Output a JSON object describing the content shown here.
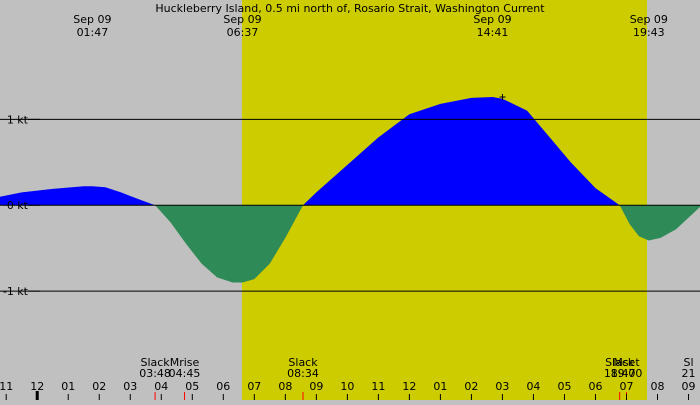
{
  "chart_data": {
    "type": "area",
    "title": "Huckleberry Island, 0.5 mi north of, Rosario Strait, Washington Current",
    "xlabel": "",
    "ylabel": "",
    "x_unit": "hours",
    "xlim": [
      -13.2,
      9.37
    ],
    "ylim": [
      -1.86,
      2.18
    ],
    "grid": false,
    "legend": "none",
    "y_ticks": [
      {
        "value": 1,
        "label": "1 kt"
      },
      {
        "value": 0,
        "label": "0 kt"
      },
      {
        "value": -1,
        "label": "-1 kt"
      }
    ],
    "daylight_start": -5.4,
    "daylight_end": 7.66,
    "colors": {
      "background": "#c0c0c0",
      "daylight": "#cccc00",
      "flood": "#0000ff",
      "ebb": "#2e8b57",
      "lines": "#000000",
      "moon_marker": "#ff0000"
    },
    "top_events": [
      {
        "date": "Sep 09",
        "time": "01:47",
        "hour": -10.22
      },
      {
        "date": "Sep 09",
        "time": "06:37",
        "hour": -5.38
      },
      {
        "date": "Sep 09",
        "time": "14:41",
        "hour": 2.68
      },
      {
        "date": "Sep 09",
        "time": "19:43",
        "hour": 7.72
      }
    ],
    "bottom_events": [
      {
        "label": "Slack",
        "time": "03:48",
        "hour": -8.2,
        "marker": true
      },
      {
        "label": "Mrise",
        "time": "04:45",
        "hour": -7.25,
        "marker": true
      },
      {
        "label": "Slack",
        "time": "08:34",
        "hour": -3.43,
        "marker": true
      },
      {
        "label": "Slack",
        "time": "18:47",
        "hour": 6.78,
        "marker": true
      },
      {
        "label": "Mset",
        "time": "19:00",
        "hour": 7.0,
        "marker": true
      },
      {
        "label": "Sl",
        "time": "21",
        "hour": 9.0,
        "marker": false
      }
    ],
    "hour_ticks": [
      {
        "label": "11",
        "hour": -13
      },
      {
        "label": "12",
        "hour": -12
      },
      {
        "label": "01",
        "hour": -11
      },
      {
        "label": "02",
        "hour": -10
      },
      {
        "label": "03",
        "hour": -9
      },
      {
        "label": "04",
        "hour": -8
      },
      {
        "label": "05",
        "hour": -7
      },
      {
        "label": "06",
        "hour": -6
      },
      {
        "label": "07",
        "hour": -5
      },
      {
        "label": "08",
        "hour": -4
      },
      {
        "label": "09",
        "hour": -3
      },
      {
        "label": "10",
        "hour": -2
      },
      {
        "label": "11",
        "hour": -1
      },
      {
        "label": "12",
        "hour": 0
      },
      {
        "label": "01",
        "hour": 1
      },
      {
        "label": "02",
        "hour": 2
      },
      {
        "label": "03",
        "hour": 3
      },
      {
        "label": "04",
        "hour": 4
      },
      {
        "label": "05",
        "hour": 5
      },
      {
        "label": "06",
        "hour": 6
      },
      {
        "label": "07",
        "hour": 7
      },
      {
        "label": "08",
        "hour": 8
      },
      {
        "label": "09",
        "hour": 9
      }
    ],
    "midnight_hour": -12,
    "current": [
      {
        "x": -13.2,
        "y": 0.1
      },
      {
        "x": -12.5,
        "y": 0.15
      },
      {
        "x": -11.5,
        "y": 0.19
      },
      {
        "x": -10.5,
        "y": 0.22
      },
      {
        "x": -10.22,
        "y": 0.22
      },
      {
        "x": -9.8,
        "y": 0.21
      },
      {
        "x": -9.3,
        "y": 0.15
      },
      {
        "x": -8.8,
        "y": 0.08
      },
      {
        "x": -8.2,
        "y": 0.0
      },
      {
        "x": -7.7,
        "y": -0.2
      },
      {
        "x": -7.2,
        "y": -0.45
      },
      {
        "x": -6.7,
        "y": -0.68
      },
      {
        "x": -6.2,
        "y": -0.84
      },
      {
        "x": -5.7,
        "y": -0.9
      },
      {
        "x": -5.38,
        "y": -0.9
      },
      {
        "x": -5.0,
        "y": -0.86
      },
      {
        "x": -4.5,
        "y": -0.68
      },
      {
        "x": -4.0,
        "y": -0.38
      },
      {
        "x": -3.43,
        "y": 0.0
      },
      {
        "x": -3.0,
        "y": 0.15
      },
      {
        "x": -2.0,
        "y": 0.47
      },
      {
        "x": -1.0,
        "y": 0.79
      },
      {
        "x": 0.0,
        "y": 1.06
      },
      {
        "x": 1.0,
        "y": 1.18
      },
      {
        "x": 2.0,
        "y": 1.25
      },
      {
        "x": 2.68,
        "y": 1.26
      },
      {
        "x": 3.0,
        "y": 1.24
      },
      {
        "x": 3.8,
        "y": 1.1
      },
      {
        "x": 4.5,
        "y": 0.8
      },
      {
        "x": 5.2,
        "y": 0.5
      },
      {
        "x": 6.0,
        "y": 0.2
      },
      {
        "x": 6.78,
        "y": 0.0
      },
      {
        "x": 7.1,
        "y": -0.22
      },
      {
        "x": 7.4,
        "y": -0.36
      },
      {
        "x": 7.72,
        "y": -0.41
      },
      {
        "x": 8.1,
        "y": -0.38
      },
      {
        "x": 8.6,
        "y": -0.28
      },
      {
        "x": 9.37,
        "y": -0.02
      }
    ]
  }
}
